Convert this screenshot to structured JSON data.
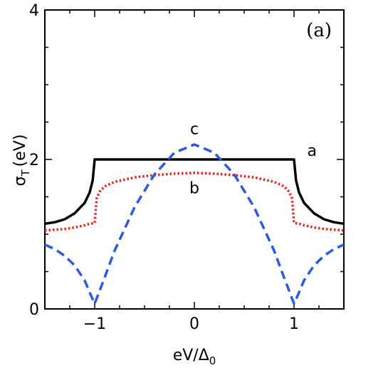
{
  "chart_data": {
    "type": "line",
    "panel_label": "(a)",
    "xlabel": "eV/Δ",
    "xlabel_sub": "0",
    "ylabel": "σ",
    "ylabel_sub": "T",
    "ylabel_unit": "(eV)",
    "xlim": [
      -1.5,
      1.5
    ],
    "ylim": [
      0,
      4
    ],
    "xticks": [
      -1,
      0,
      1
    ],
    "xtick_labels": [
      "−1",
      "0",
      "1"
    ],
    "yticks": [
      0,
      2,
      4
    ],
    "ytick_labels": [
      "0",
      "2",
      "4"
    ],
    "grid": false,
    "series": [
      {
        "name": "a",
        "color": "#000000",
        "style": "solid",
        "points": [
          [
            -1.5,
            1.14
          ],
          [
            -1.4,
            1.16
          ],
          [
            -1.3,
            1.2
          ],
          [
            -1.2,
            1.28
          ],
          [
            -1.1,
            1.42
          ],
          [
            -1.05,
            1.56
          ],
          [
            -1.02,
            1.72
          ],
          [
            -1.0,
            2.0
          ],
          [
            1.0,
            2.0
          ],
          [
            1.02,
            1.72
          ],
          [
            1.05,
            1.56
          ],
          [
            1.1,
            1.42
          ],
          [
            1.2,
            1.28
          ],
          [
            1.3,
            1.2
          ],
          [
            1.4,
            1.16
          ],
          [
            1.5,
            1.14
          ]
        ]
      },
      {
        "name": "b",
        "color": "#e8211d",
        "style": "dotted",
        "points": [
          [
            -1.5,
            1.05
          ],
          [
            -1.4,
            1.06
          ],
          [
            -1.3,
            1.07
          ],
          [
            -1.2,
            1.09
          ],
          [
            -1.1,
            1.12
          ],
          [
            -1.05,
            1.14
          ],
          [
            -1.0,
            1.15
          ],
          [
            -0.98,
            1.48
          ],
          [
            -0.95,
            1.57
          ],
          [
            -0.9,
            1.64
          ],
          [
            -0.8,
            1.7
          ],
          [
            -0.6,
            1.76
          ],
          [
            -0.4,
            1.79
          ],
          [
            -0.2,
            1.81
          ],
          [
            0.0,
            1.82
          ],
          [
            0.2,
            1.81
          ],
          [
            0.4,
            1.79
          ],
          [
            0.6,
            1.76
          ],
          [
            0.8,
            1.7
          ],
          [
            0.9,
            1.64
          ],
          [
            0.95,
            1.57
          ],
          [
            0.98,
            1.48
          ],
          [
            1.0,
            1.15
          ],
          [
            1.05,
            1.14
          ],
          [
            1.1,
            1.12
          ],
          [
            1.2,
            1.09
          ],
          [
            1.3,
            1.07
          ],
          [
            1.4,
            1.06
          ],
          [
            1.5,
            1.05
          ]
        ]
      },
      {
        "name": "c",
        "color": "#2a5ae0",
        "style": "dashed",
        "points": [
          [
            -1.5,
            0.86
          ],
          [
            -1.4,
            0.8
          ],
          [
            -1.3,
            0.71
          ],
          [
            -1.2,
            0.58
          ],
          [
            -1.1,
            0.38
          ],
          [
            -1.05,
            0.22
          ],
          [
            -1.0,
            0.07
          ],
          [
            -0.9,
            0.42
          ],
          [
            -0.8,
            0.78
          ],
          [
            -0.6,
            1.36
          ],
          [
            -0.4,
            1.8
          ],
          [
            -0.2,
            2.09
          ],
          [
            0.0,
            2.2
          ],
          [
            0.2,
            2.09
          ],
          [
            0.4,
            1.8
          ],
          [
            0.6,
            1.36
          ],
          [
            0.8,
            0.78
          ],
          [
            0.9,
            0.42
          ],
          [
            1.0,
            0.07
          ],
          [
            1.05,
            0.22
          ],
          [
            1.1,
            0.38
          ],
          [
            1.2,
            0.58
          ],
          [
            1.3,
            0.71
          ],
          [
            1.4,
            0.8
          ],
          [
            1.5,
            0.86
          ]
        ]
      }
    ],
    "annotations": [
      {
        "text": "a",
        "x": 1.18,
        "y": 2.05
      },
      {
        "text": "b",
        "x": 0.0,
        "y": 1.55
      },
      {
        "text": "c",
        "x": 0.0,
        "y": 2.34
      }
    ]
  }
}
